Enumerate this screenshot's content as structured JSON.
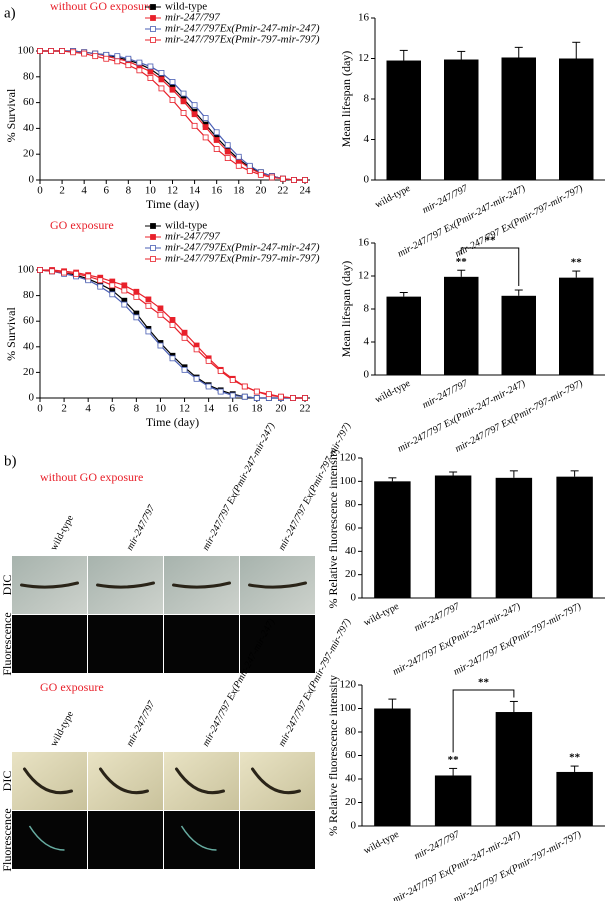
{
  "panel_labels": [
    "a)",
    "b)"
  ],
  "chart_data": [
    {
      "type": "line",
      "title": "without GO exposure",
      "xlabel": "Time (day)",
      "ylabel": "% Survival",
      "x": [
        0,
        1,
        2,
        3,
        4,
        5,
        6,
        7,
        8,
        9,
        10,
        11,
        12,
        13,
        14,
        15,
        16,
        17,
        18,
        19,
        20,
        21,
        22,
        23,
        24
      ],
      "xlim": [
        0,
        24
      ],
      "xticks": [
        0,
        2,
        4,
        6,
        8,
        10,
        12,
        14,
        16,
        18,
        20,
        22,
        24
      ],
      "ylim": [
        0,
        100
      ],
      "yticks": [
        0,
        20,
        40,
        60,
        80,
        100
      ],
      "series": [
        {
          "name": "wild-type",
          "color": "#000000",
          "marker": "filled-square",
          "values": [
            100,
            100,
            100,
            100,
            99,
            98,
            97,
            95,
            93,
            90,
            86,
            80,
            72,
            63,
            53,
            43,
            33,
            24,
            16,
            10,
            6,
            3,
            1,
            0,
            0
          ]
        },
        {
          "name": "mir-247/797",
          "color": "#e8202a",
          "marker": "filled-square",
          "values": [
            100,
            100,
            100,
            100,
            99,
            98,
            96,
            94,
            92,
            88,
            84,
            78,
            70,
            61,
            51,
            41,
            31,
            22,
            15,
            9,
            5,
            3,
            1,
            0,
            0
          ]
        },
        {
          "name": "mir-247/797Ex(Pmir-247-mir-247)",
          "color": "#4a5fb5",
          "marker": "open-square",
          "values": [
            100,
            100,
            100,
            100,
            99,
            98,
            97,
            96,
            94,
            91,
            88,
            83,
            76,
            67,
            58,
            48,
            37,
            27,
            18,
            11,
            6,
            3,
            1,
            0,
            0
          ]
        },
        {
          "name": "mir-247/797Ex(Pmir-797-mir-797)",
          "color": "#e8202a",
          "marker": "open-square",
          "values": [
            100,
            100,
            100,
            99,
            98,
            96,
            94,
            92,
            89,
            85,
            79,
            71,
            62,
            52,
            42,
            33,
            24,
            17,
            11,
            7,
            4,
            2,
            1,
            0,
            0
          ]
        }
      ]
    },
    {
      "type": "bar",
      "ylabel": "Mean lifespan (day)",
      "color": "#000000",
      "categories": [
        "wild-type",
        "mir-247/797",
        "mir-247/797 Ex(Pmir-247-mir-247)",
        "mir-247/797 Ex(Pmir-797-mir-797)"
      ],
      "values": [
        11.8,
        11.9,
        12.1,
        12.0
      ],
      "errors": [
        1.0,
        0.8,
        1.0,
        1.6
      ],
      "ylim": [
        0,
        16
      ],
      "yticks": [
        0,
        4,
        8,
        12,
        16
      ]
    },
    {
      "type": "line",
      "title": "GO exposure",
      "xlabel": "Time (day)",
      "ylabel": "% Survival",
      "x": [
        0,
        1,
        2,
        3,
        4,
        5,
        6,
        7,
        8,
        9,
        10,
        11,
        12,
        13,
        14,
        15,
        16,
        17,
        18,
        19,
        20,
        21,
        22
      ],
      "xlim": [
        0,
        22
      ],
      "xticks": [
        0,
        2,
        4,
        6,
        8,
        10,
        12,
        14,
        16,
        18,
        20,
        22
      ],
      "ylim": [
        0,
        100
      ],
      "yticks": [
        0,
        20,
        40,
        60,
        80,
        100
      ],
      "series": [
        {
          "name": "wild-type",
          "color": "#000000",
          "marker": "filled-square",
          "values": [
            100,
            99,
            98,
            96,
            93,
            89,
            84,
            76,
            66,
            54,
            43,
            33,
            24,
            16,
            10,
            6,
            3,
            1,
            0,
            0,
            0,
            0,
            0
          ]
        },
        {
          "name": "mir-247/797",
          "color": "#e8202a",
          "marker": "filled-square",
          "values": [
            100,
            100,
            99,
            98,
            96,
            94,
            91,
            88,
            83,
            77,
            70,
            61,
            51,
            41,
            31,
            22,
            15,
            9,
            5,
            2,
            1,
            0,
            0
          ]
        },
        {
          "name": "mir-247/797Ex(Pmir-247-mir-247)",
          "color": "#4a5fb5",
          "marker": "open-square",
          "values": [
            100,
            99,
            97,
            95,
            92,
            87,
            81,
            73,
            63,
            52,
            41,
            31,
            22,
            15,
            9,
            5,
            2,
            1,
            0,
            0,
            0,
            0,
            0
          ]
        },
        {
          "name": "mir-247/797Ex(Pmir-797-mir-797)",
          "color": "#e8202a",
          "marker": "open-square",
          "values": [
            100,
            99,
            98,
            97,
            95,
            92,
            88,
            84,
            79,
            72,
            65,
            57,
            47,
            38,
            29,
            21,
            14,
            9,
            5,
            3,
            1,
            0,
            0
          ]
        }
      ]
    },
    {
      "type": "bar",
      "ylabel": "Mean lifespan (day)",
      "color": "#000000",
      "categories": [
        "wild-type",
        "mir-247/797",
        "mir-247/797 Ex(Pmir-247-mir-247)",
        "mir-247/797 Ex(Pmir-797-mir-797)"
      ],
      "values": [
        9.5,
        11.9,
        9.6,
        11.8
      ],
      "errors": [
        0.5,
        0.8,
        0.7,
        0.8
      ],
      "ylim": [
        0,
        16
      ],
      "yticks": [
        0,
        4,
        8,
        12,
        16
      ],
      "annotations": [
        {
          "text": "**",
          "x": "mir-247/797"
        },
        {
          "text": "**",
          "x": "mir-247/797 Ex(Pmir-797-mir-797)"
        }
      ],
      "brackets": [
        {
          "text": "**",
          "from": "mir-247/797",
          "to": "mir-247/797 Ex(Pmir-247-mir-247)"
        }
      ]
    },
    {
      "type": "bar",
      "ylabel": "% Relative fluorescence intensity",
      "color": "#000000",
      "categories": [
        "wild-type",
        "mir-247/797",
        "mir-247/797 Ex(Pmir-247-mir-247)",
        "mir-247/797 Ex(Pmir-797-mir-797)"
      ],
      "values": [
        100,
        105,
        103,
        104
      ],
      "errors": [
        3,
        3,
        6,
        5
      ],
      "ylim": [
        0,
        120
      ],
      "yticks": [
        0,
        20,
        40,
        60,
        80,
        100,
        120
      ]
    },
    {
      "type": "bar",
      "ylabel": "% Relative fluorescence intensity",
      "color": "#000000",
      "categories": [
        "wild-type",
        "mir-247/797",
        "mir-247/797 Ex(Pmir-247-mir-247)",
        "mir-247/797 Ex(Pmir-797-mir-797)"
      ],
      "values": [
        100,
        43,
        97,
        46
      ],
      "errors": [
        8,
        6,
        9,
        5
      ],
      "ylim": [
        0,
        120
      ],
      "yticks": [
        0,
        20,
        40,
        60,
        80,
        100,
        120
      ],
      "annotations": [
        {
          "text": "**",
          "x": "mir-247/797"
        },
        {
          "text": "**",
          "x": "mir-247/797 Ex(Pmir-797-mir-797)"
        }
      ],
      "brackets": [
        {
          "text": "**",
          "from": "mir-247/797",
          "to": "mir-247/797 Ex(Pmir-247-mir-247)"
        }
      ]
    }
  ],
  "image_grids": [
    {
      "title": "without GO exposure",
      "columns": [
        "wild-type",
        "mir-247/797",
        "mir-247/797 Ex(Pmir-247-mir-247)",
        "mir-247/797 Ex(Pmir-797-mir-797)"
      ],
      "rows": [
        "DIC",
        "Fluorescence"
      ]
    },
    {
      "title": "GO exposure",
      "columns": [
        "wild-type",
        "mir-247/797",
        "mir-247/797 Ex(Pmir-247-mir-247)",
        "mir-247/797 Ex(Pmir-797-mir-797)"
      ],
      "rows": [
        "DIC",
        "Fluorescence"
      ]
    }
  ]
}
